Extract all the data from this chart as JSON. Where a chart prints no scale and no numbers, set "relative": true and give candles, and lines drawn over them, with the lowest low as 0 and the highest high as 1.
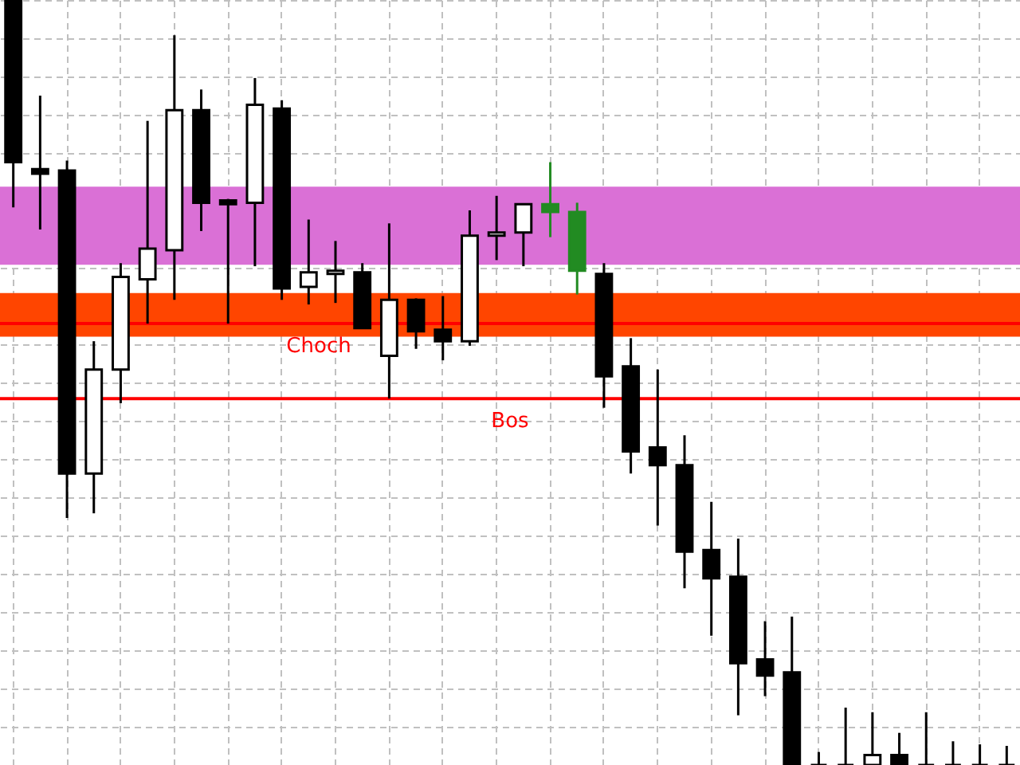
{
  "chart_data": {
    "type": "candlestick",
    "relative": true,
    "grid": true,
    "categories": [
      null,
      null,
      null,
      null,
      null,
      null,
      null,
      null,
      null,
      null,
      null,
      null,
      null,
      null,
      null,
      null,
      null,
      null,
      null,
      null,
      null,
      null,
      null,
      null,
      null,
      null,
      null,
      null,
      null,
      null,
      null,
      null,
      null,
      null,
      null,
      null,
      null,
      null
    ],
    "ohlc": [
      [
        1,
        1,
        0.729,
        0.788
      ],
      [
        0.779,
        0.875,
        0.7,
        0.773
      ],
      [
        0.777,
        0.79,
        0.323,
        0.381
      ],
      [
        0.381,
        0.554,
        0.329,
        0.517
      ],
      [
        0.517,
        0.656,
        0.473,
        0.638
      ],
      [
        0.635,
        0.842,
        0.577,
        0.675
      ],
      [
        0.673,
        0.954,
        0.608,
        0.856
      ],
      [
        0.856,
        0.883,
        0.698,
        0.735
      ],
      [
        0.738,
        0.74,
        0.577,
        0.733
      ],
      [
        0.735,
        0.898,
        0.652,
        0.863
      ],
      [
        0.858,
        0.869,
        0.608,
        0.623
      ],
      [
        0.625,
        0.713,
        0.602,
        0.644
      ],
      [
        0.642,
        0.685,
        0.604,
        0.646
      ],
      [
        0.644,
        0.656,
        0.571,
        0.571
      ],
      [
        0.535,
        0.708,
        0.479,
        0.608
      ],
      [
        0.608,
        0.61,
        0.544,
        0.567
      ],
      [
        0.569,
        0.613,
        0.529,
        0.554
      ],
      [
        0.554,
        0.725,
        0.548,
        0.692
      ],
      [
        0.692,
        0.744,
        0.66,
        0.696
      ],
      [
        0.696,
        0.733,
        0.652,
        0.733
      ],
      [
        0.733,
        0.788,
        0.69,
        0.723
      ],
      [
        0.723,
        0.735,
        0.615,
        0.646
      ],
      [
        0.642,
        0.656,
        0.467,
        0.508
      ],
      [
        0.521,
        0.558,
        0.381,
        0.41
      ],
      [
        0.415,
        0.517,
        0.313,
        0.392
      ],
      [
        0.392,
        0.431,
        0.231,
        0.279
      ],
      [
        0.281,
        0.344,
        0.169,
        0.244
      ],
      [
        0.246,
        0.296,
        0.065,
        0.133
      ],
      [
        0.138,
        0.188,
        0.09,
        0.117
      ],
      [
        0.121,
        0.194,
        0,
        0
      ],
      [
        0,
        0.017,
        0,
        0
      ],
      [
        0,
        0.075,
        0,
        0
      ],
      [
        0,
        0.069,
        0,
        0.013
      ],
      [
        0.013,
        0.042,
        0,
        0
      ],
      [
        0,
        0.069,
        0,
        0
      ],
      [
        0,
        0.031,
        0,
        0
      ],
      [
        0,
        0.027,
        0,
        0
      ],
      [
        0,
        0.025,
        0,
        0
      ]
    ],
    "colors": [
      "#000000",
      "#000000",
      "#000000",
      "#ffffff",
      "#ffffff",
      "#ffffff",
      "#ffffff",
      "#000000",
      "#000000",
      "#ffffff",
      "#000000",
      "#ffffff",
      "#ffffff",
      "#000000",
      "#ffffff",
      "#000000",
      "#000000",
      "#ffffff",
      "#ffffff",
      "#ffffff",
      "#228b22",
      "#228b22",
      "#000000",
      "#000000",
      "#000000",
      "#000000",
      "#000000",
      "#000000",
      "#000000",
      "#000000",
      "#000000",
      "#000000",
      "#ffffff",
      "#000000",
      "#000000",
      "#000000",
      "#000000",
      "#000000"
    ],
    "bands": [
      {
        "axis": "y",
        "from": 0.654,
        "to": 0.756,
        "color": "#da70d6"
      },
      {
        "axis": "y",
        "from": 0.56,
        "to": 0.617,
        "color": "#ff4500"
      }
    ],
    "ref_lines": [
      {
        "axis": "y",
        "value": 0.577,
        "label": "Choch",
        "color": "#ff0000"
      },
      {
        "axis": "y",
        "value": 0.479,
        "label": "Bos",
        "color": "#ff0000"
      }
    ]
  }
}
